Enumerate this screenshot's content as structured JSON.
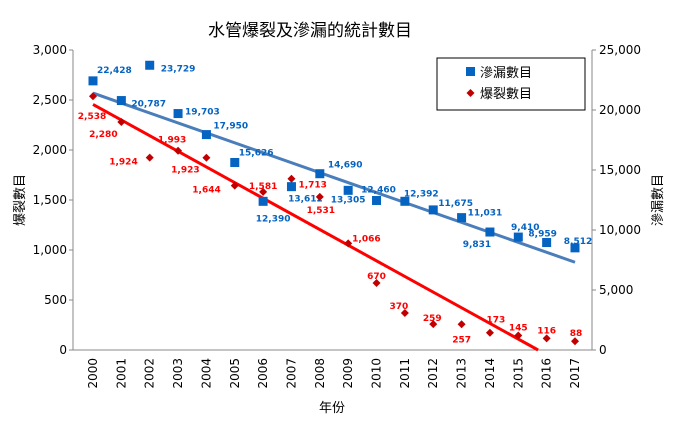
{
  "chart_data": {
    "type": "scatter",
    "title": "水管爆裂及滲漏的統計數目",
    "xlabel": "年份",
    "ylabel_left": "爆裂數目",
    "ylabel_right": "滲漏數目",
    "categories": [
      "2000",
      "2001",
      "2002",
      "2003",
      "2004",
      "2005",
      "2006",
      "2007",
      "2008",
      "2009",
      "2010",
      "2011",
      "2012",
      "2013",
      "2014",
      "2015",
      "2016",
      "2017"
    ],
    "ylim_left": [
      0,
      3000
    ],
    "ylim_right": [
      0,
      25000
    ],
    "yticks_left": [
      "0",
      "500",
      "1,000",
      "1,500",
      "2,000",
      "2,500",
      "3,000"
    ],
    "yticks_right": [
      "0",
      "5,000",
      "10,000",
      "15,000",
      "20,000",
      "25,000"
    ],
    "grid": false,
    "legend_position": "top-right",
    "series": [
      {
        "name": "滲漏數目",
        "axis": "right",
        "marker": "square",
        "color": "#0563c1",
        "trendline": "linear",
        "trend_color": "#4a7ebb",
        "values": [
          22428,
          20787,
          23729,
          19703,
          17950,
          15626,
          12390,
          13612,
          14690,
          13305,
          12460,
          12392,
          11675,
          11031,
          9831,
          9410,
          8959,
          8512
        ],
        "labels": [
          "22,428",
          "20,787",
          "23,729",
          "19,703",
          "17,950",
          "15,626",
          "12,390",
          "13,612",
          "14,690",
          "13,305",
          "12,460",
          "12,392",
          "11,675",
          "11,031",
          "9,831",
          "9,410",
          "8,959",
          "8,512"
        ]
      },
      {
        "name": "爆裂數目",
        "axis": "left",
        "marker": "diamond",
        "color": "#c00000",
        "label_color": "#ff0000",
        "trendline": "linear",
        "trend_color": "#ff0000",
        "values": [
          2538,
          2280,
          1924,
          1993,
          1923,
          1644,
          1581,
          1713,
          1531,
          1066,
          670,
          370,
          259,
          257,
          173,
          145,
          116,
          88
        ],
        "labels": [
          "2,538",
          "2,280",
          "1,924",
          "1,993",
          "1,923",
          "1,644",
          "1,581",
          "1,713",
          "1,531",
          "1,066",
          "670",
          "370",
          "259",
          "257",
          "173",
          "145",
          "116",
          "88"
        ]
      }
    ]
  }
}
